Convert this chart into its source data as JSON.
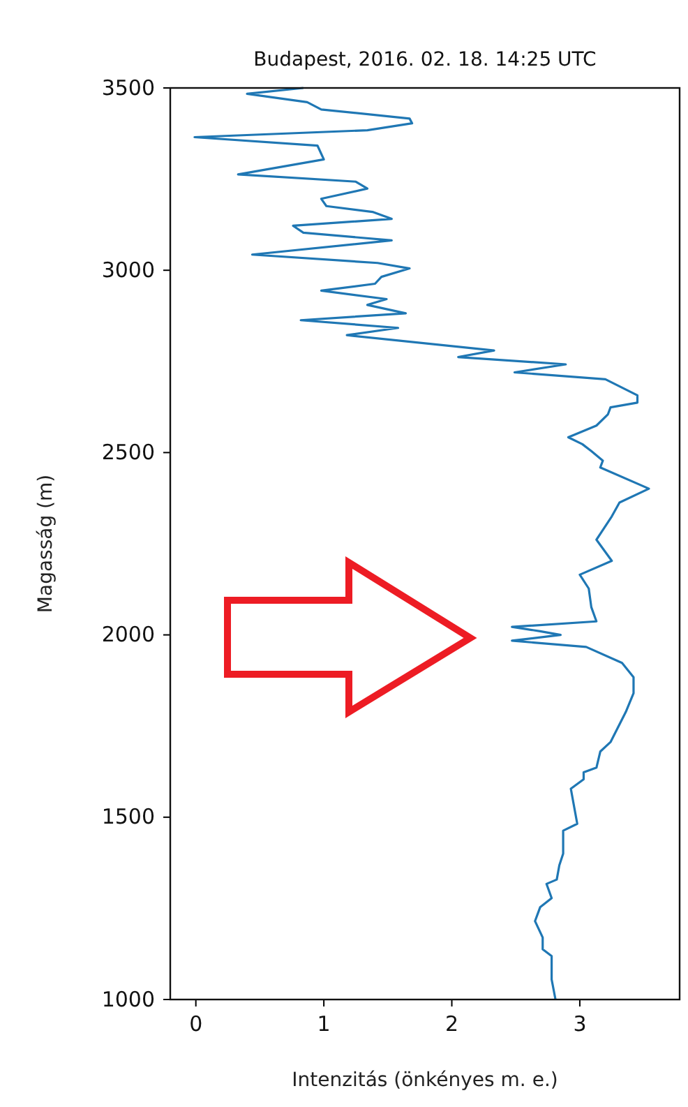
{
  "chart_data": {
    "type": "line",
    "title": "Budapest, 2016. 02. 18. 14:25 UTC",
    "xlabel": "Intenzitás (önkényes m. e.)",
    "ylabel": "Magasság (m)",
    "xlim": [
      -0.2,
      3.78
    ],
    "ylim": [
      1000,
      3500
    ],
    "xticks": [
      0,
      1,
      2,
      3
    ],
    "yticks": [
      1000,
      1500,
      2000,
      2500,
      3000,
      3500
    ],
    "grid": false,
    "marker": "none",
    "line_style": "solid",
    "series": [
      {
        "color": "#1f77b4",
        "x": [
          2.81,
          2.78,
          2.78,
          2.71,
          2.71,
          2.65,
          2.69,
          2.78,
          2.74,
          2.82,
          2.84,
          2.87,
          2.87,
          2.98,
          2.93,
          3.03,
          3.03,
          3.13,
          3.16,
          3.24,
          3.36,
          3.42,
          3.42,
          3.33,
          3.05,
          2.47,
          2.85,
          2.69,
          2.47,
          3.13,
          3.09,
          3.07,
          3.0,
          3.25,
          3.13,
          3.25,
          3.31,
          3.54,
          3.16,
          3.18,
          3.09,
          3.02,
          2.91,
          3.13,
          3.22,
          3.24,
          3.45,
          3.45,
          3.2,
          2.49,
          2.89,
          2.05,
          2.33,
          1.18,
          1.58,
          0.82,
          1.64,
          1.34,
          1.49,
          0.98,
          1.4,
          1.45,
          1.67,
          1.42,
          0.44,
          1.53,
          0.84,
          0.76,
          1.53,
          1.38,
          1.02,
          0.98,
          1.34,
          1.25,
          0.33,
          1.0,
          0.95,
          -0.01,
          1.34,
          1.69,
          1.67,
          0.98,
          0.87,
          0.4,
          0.84
        ],
        "values": [
          1000,
          1055,
          1119,
          1138,
          1170,
          1215,
          1253,
          1278,
          1317,
          1329,
          1368,
          1400,
          1463,
          1482,
          1578,
          1604,
          1623,
          1636,
          1680,
          1706,
          1789,
          1840,
          1884,
          1923,
          1967,
          1984,
          2000,
          2010,
          2022,
          2037,
          2076,
          2127,
          2165,
          2203,
          2261,
          2325,
          2363,
          2401,
          2459,
          2478,
          2504,
          2523,
          2542,
          2574,
          2605,
          2624,
          2637,
          2657,
          2701,
          2720,
          2742,
          2762,
          2780,
          2822,
          2842,
          2863,
          2882,
          2905,
          2921,
          2944,
          2963,
          2982,
          3005,
          3020,
          3043,
          3082,
          3103,
          3122,
          3141,
          3160,
          3176,
          3196,
          3224,
          3243,
          3263,
          3304,
          3342,
          3365,
          3384,
          3403,
          3416,
          3441,
          3461,
          3484,
          3500
        ]
      }
    ]
  }
}
